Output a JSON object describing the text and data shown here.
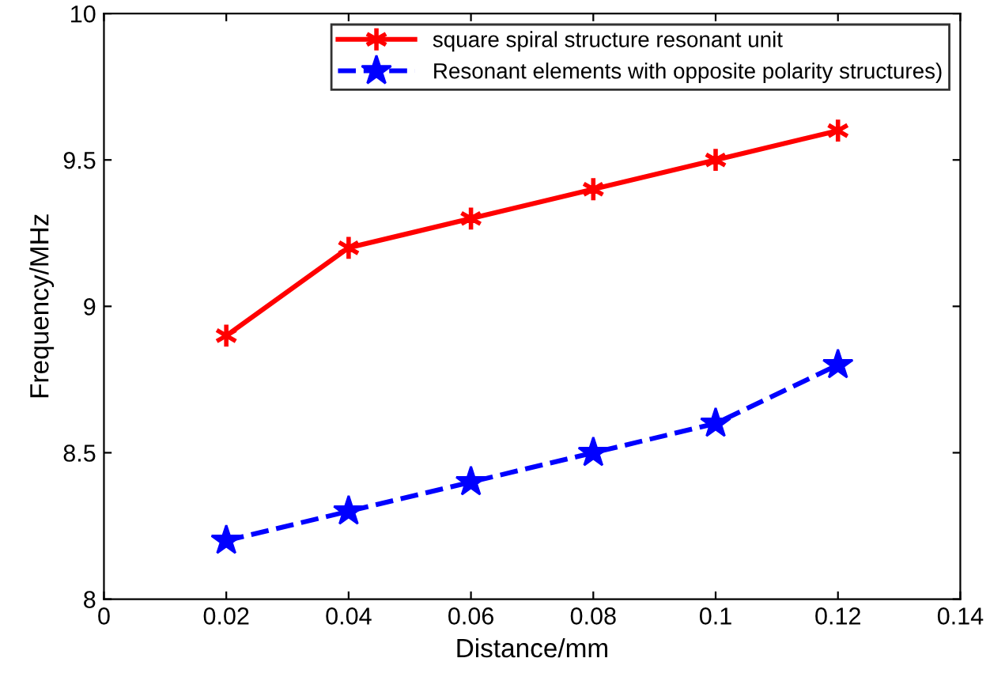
{
  "chart_data": {
    "type": "line",
    "xlabel": "Distance/mm",
    "ylabel": "Frequency/MHz",
    "x": [
      0.02,
      0.04,
      0.06,
      0.08,
      0.1,
      0.12
    ],
    "series": [
      {
        "name": "square spiral structure resonant unit",
        "color": "#ff0000",
        "values": [
          8.9,
          9.2,
          9.3,
          9.4,
          9.5,
          9.6
        ],
        "marker": "cross",
        "line_style": "solid"
      },
      {
        "name": "Resonant elements with opposite polarity structures)",
        "color": "#0000ff",
        "values": [
          8.2,
          8.3,
          8.4,
          8.5,
          8.6,
          8.8
        ],
        "marker": "star",
        "line_style": "dashed"
      }
    ],
    "xlim": [
      0,
      0.14
    ],
    "xticks": [
      0,
      0.02,
      0.04,
      0.06,
      0.08,
      0.1,
      0.12,
      0.14
    ],
    "ylim": [
      8,
      10
    ],
    "yticks": [
      8,
      8.5,
      9,
      9.5,
      10
    ],
    "grid": false,
    "legend": "top right"
  }
}
